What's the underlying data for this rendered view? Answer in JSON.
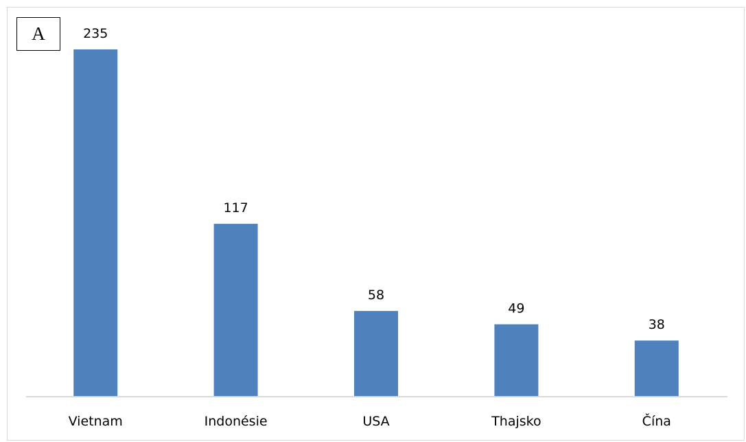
{
  "panel_label": "A",
  "colors": {
    "bar": "#4f81bd",
    "axis": "#d9d9d9"
  },
  "chart_data": {
    "type": "bar",
    "categories": [
      "Vietnam",
      "Indonésie",
      "USA",
      "Thajsko",
      "Čína"
    ],
    "values": [
      235,
      117,
      58,
      49,
      38
    ],
    "title": "",
    "xlabel": "",
    "ylabel": "",
    "ylim": [
      0,
      235
    ],
    "grid": false,
    "legend": "none",
    "data_labels": true
  }
}
